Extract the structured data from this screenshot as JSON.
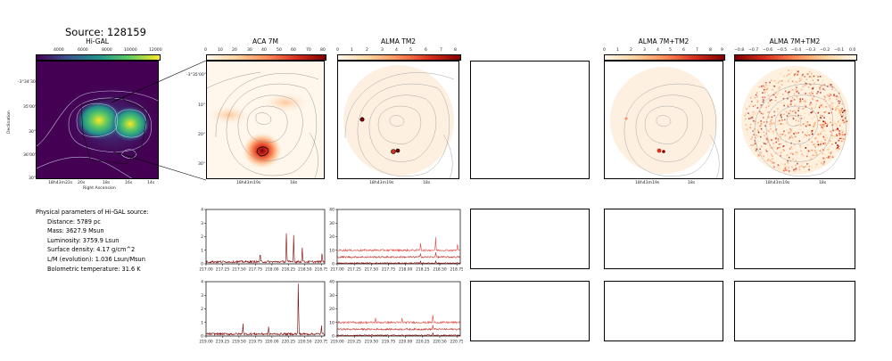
{
  "header": {
    "title": "Source: 128159"
  },
  "panels": {
    "higal": {
      "title": "Hi-GAL",
      "colorbar_ticks": [
        "4000",
        "6000",
        "8000",
        "10000",
        "12000"
      ],
      "ylabel": "Declination",
      "xlabel": "Right Ascension",
      "yticks": [
        "-3°34'30\"",
        "35'00\"",
        "30\"",
        "36'00\"",
        "30\""
      ],
      "xticks": [
        "18h43m22s",
        "20s",
        "18s",
        "16s",
        "14s"
      ]
    },
    "aca7m": {
      "title": "ACA 7M",
      "colorbar_ticks": [
        "0",
        "10",
        "20",
        "30",
        "40",
        "50",
        "60",
        "70",
        "80"
      ],
      "yticks": [
        "-3°35'00\"",
        "10\"",
        "20\"",
        "30\""
      ],
      "xticks": [
        "18h43m19s",
        "18s"
      ]
    },
    "almatm2": {
      "title": "ALMA TM2",
      "colorbar_ticks": [
        "0",
        "1",
        "2",
        "3",
        "4",
        "5",
        "6",
        "7",
        "8"
      ],
      "xticks": [
        "18h43m19s",
        "18s"
      ]
    },
    "combo": {
      "title": "ALMA 7M+TM2",
      "colorbar_ticks": [
        "0",
        "1",
        "2",
        "3",
        "4",
        "5",
        "6",
        "7",
        "8",
        "9"
      ],
      "xticks": [
        "18h43m19s",
        "18s"
      ]
    },
    "combo_alpha": {
      "title": "ALMA 7M+TM2",
      "colorbar_ticks": [
        "−0.8",
        "−0.7",
        "−0.6",
        "−0.5",
        "−0.4",
        "−0.3",
        "−0.2",
        "−0.1",
        "0.0"
      ],
      "xticks": [
        "18h43m19s",
        "18s"
      ]
    }
  },
  "parameters": {
    "heading": "Physical parameters of Hi-GAL source:",
    "lines": [
      "Distance: 5789 pc",
      "Mass: 3627.9 Msun",
      "Luminosity: 3759.9 Lsun",
      "Surface density: 4.17 g/cm^2",
      "L/M (evolution): 1.036 Lsun/Msun",
      "Bolometric temperature: 31.6 K"
    ]
  },
  "colors": {
    "viridis": [
      "#440154",
      "#3b528b",
      "#21918c",
      "#5ec962",
      "#fde725"
    ],
    "orrd": [
      "#fff7ec",
      "#fdd49e",
      "#fc8d59",
      "#d7301f",
      "#7f0000"
    ],
    "spectrum_dark": "#7f0000",
    "spectrum_mid": "#c0302a",
    "spectrum_light": "#e8463f"
  },
  "chart_data": [
    {
      "type": "line",
      "panel": "spectrum-7m-top",
      "x_range": [
        217.0,
        218.8
      ],
      "xticks": [
        "217.00",
        "217.25",
        "217.50",
        "217.75",
        "218.00",
        "218.25",
        "218.50",
        "218.75"
      ],
      "yticks": [
        "0",
        "1",
        "2",
        "3",
        "4"
      ],
      "ylim": [
        0,
        4
      ],
      "series": [
        {
          "baseline": 0.15,
          "noise": 0.08,
          "peaks": [
            [
              217.82,
              0.6
            ],
            [
              218.22,
              2.2
            ],
            [
              218.33,
              2.0
            ],
            [
              218.46,
              1.1
            ],
            [
              218.76,
              0.7
            ]
          ]
        }
      ]
    },
    {
      "type": "line",
      "panel": "spectrum-tm2-top",
      "x_range": [
        217.0,
        218.8
      ],
      "xticks": [
        "217.00",
        "217.25",
        "217.50",
        "217.75",
        "218.00",
        "218.25",
        "218.50",
        "218.75"
      ],
      "yticks": [
        "0",
        "10",
        "20",
        "30",
        "40"
      ],
      "ylim": [
        0,
        40
      ],
      "series": [
        {
          "baseline": 10,
          "noise": 0.7,
          "peaks": [
            [
              218.22,
              6
            ],
            [
              218.44,
              9
            ],
            [
              218.76,
              5
            ]
          ]
        },
        {
          "baseline": 5,
          "noise": 0.6,
          "peaks": [
            [
              218.22,
              3
            ],
            [
              218.44,
              4
            ]
          ]
        },
        {
          "baseline": 0.5,
          "noise": 0.4,
          "peaks": [
            [
              218.22,
              1.5
            ],
            [
              218.44,
              2
            ]
          ]
        }
      ]
    },
    {
      "type": "line",
      "panel": "spectrum-7m-bottom",
      "x_range": [
        219.0,
        220.8
      ],
      "xticks": [
        "219.00",
        "219.25",
        "219.50",
        "219.75",
        "220.00",
        "220.25",
        "220.50",
        "220.75"
      ],
      "yticks": [
        "0",
        "1",
        "2",
        "3",
        "4"
      ],
      "ylim": [
        0,
        4
      ],
      "series": [
        {
          "baseline": 0.15,
          "noise": 0.08,
          "peaks": [
            [
              219.56,
              0.8
            ],
            [
              219.95,
              0.5
            ],
            [
              220.4,
              3.9
            ],
            [
              220.75,
              0.6
            ]
          ]
        }
      ]
    },
    {
      "type": "line",
      "panel": "spectrum-tm2-bottom",
      "x_range": [
        219.0,
        220.8
      ],
      "xticks": [
        "219.00",
        "219.25",
        "219.50",
        "219.75",
        "220.00",
        "220.25",
        "220.50",
        "220.75"
      ],
      "yticks": [
        "0",
        "10",
        "20",
        "30",
        "40"
      ],
      "ylim": [
        0,
        40
      ],
      "series": [
        {
          "baseline": 10,
          "noise": 0.7,
          "peaks": [
            [
              219.56,
              3
            ],
            [
              219.95,
              3
            ],
            [
              220.4,
              6
            ]
          ]
        },
        {
          "baseline": 5,
          "noise": 0.6,
          "peaks": [
            [
              220.4,
              3
            ]
          ]
        },
        {
          "baseline": 0.5,
          "noise": 0.4,
          "peaks": [
            [
              220.4,
              1.5
            ]
          ]
        }
      ]
    }
  ]
}
